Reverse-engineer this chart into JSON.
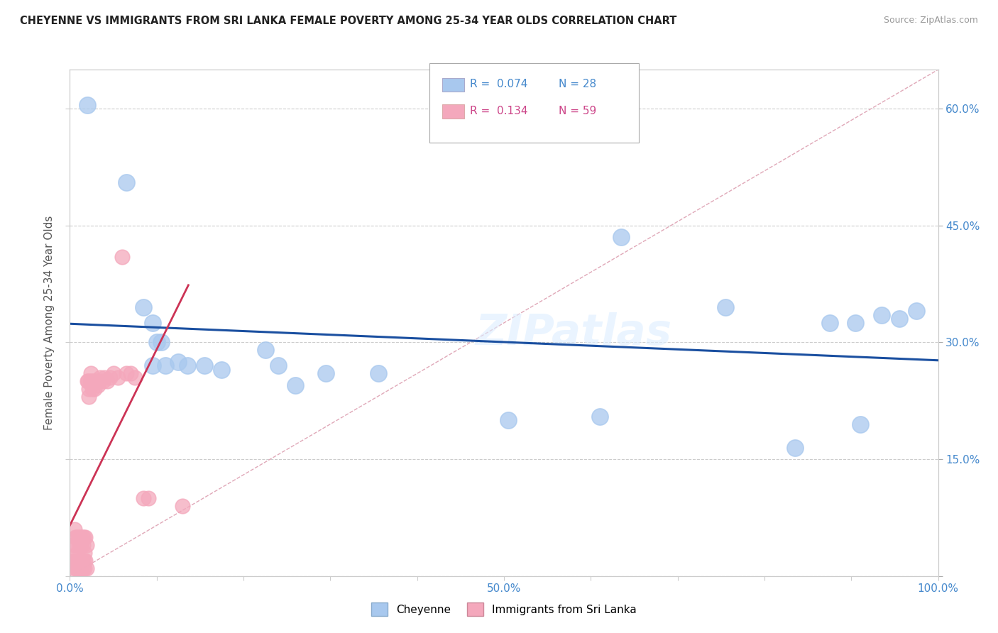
{
  "title": "CHEYENNE VS IMMIGRANTS FROM SRI LANKA FEMALE POVERTY AMONG 25-34 YEAR OLDS CORRELATION CHART",
  "source": "Source: ZipAtlas.com",
  "ylabel": "Female Poverty Among 25-34 Year Olds",
  "xlim": [
    0,
    1.0
  ],
  "ylim": [
    0,
    0.65
  ],
  "xticks": [
    0.0,
    0.1,
    0.2,
    0.3,
    0.4,
    0.5,
    0.6,
    0.7,
    0.8,
    0.9,
    1.0
  ],
  "xticklabels_show": {
    "0.0": "0.0%",
    "0.5": "50.0%",
    "1.0": "100.0%"
  },
  "yticks": [
    0.0,
    0.15,
    0.3,
    0.45,
    0.6
  ],
  "yticklabels_right": [
    "",
    "15.0%",
    "30.0%",
    "45.0%",
    "60.0%"
  ],
  "legend_r1": "0.074",
  "legend_n1": "28",
  "legend_r2": "0.134",
  "legend_n2": "59",
  "cheyenne_color": "#a8c8ee",
  "srilanka_color": "#f4a8bc",
  "trend_blue": "#1a4fa0",
  "trend_pink": "#cc3355",
  "diag_color": "#e0a8b8",
  "watermark": "ZIPatlas",
  "tick_color": "#4488cc",
  "grid_color": "#cccccc",
  "cheyenne_x": [
    0.02,
    0.065,
    0.085,
    0.095,
    0.1,
    0.11,
    0.125,
    0.135,
    0.155,
    0.175,
    0.225,
    0.24,
    0.26,
    0.295,
    0.355,
    0.505,
    0.61,
    0.635,
    0.755,
    0.835,
    0.875,
    0.905,
    0.91,
    0.935,
    0.955,
    0.975,
    0.095,
    0.105
  ],
  "cheyenne_y": [
    0.605,
    0.505,
    0.345,
    0.325,
    0.3,
    0.27,
    0.275,
    0.27,
    0.27,
    0.265,
    0.29,
    0.27,
    0.245,
    0.26,
    0.26,
    0.2,
    0.205,
    0.435,
    0.345,
    0.165,
    0.325,
    0.325,
    0.195,
    0.335,
    0.33,
    0.34,
    0.27,
    0.3
  ],
  "srilanka_x": [
    0.003,
    0.004,
    0.005,
    0.005,
    0.006,
    0.006,
    0.007,
    0.007,
    0.008,
    0.008,
    0.009,
    0.009,
    0.01,
    0.01,
    0.011,
    0.011,
    0.012,
    0.012,
    0.013,
    0.013,
    0.014,
    0.014,
    0.015,
    0.015,
    0.016,
    0.016,
    0.017,
    0.017,
    0.018,
    0.018,
    0.019,
    0.019,
    0.02,
    0.021,
    0.022,
    0.022,
    0.023,
    0.024,
    0.025,
    0.026,
    0.027,
    0.028,
    0.03,
    0.032,
    0.033,
    0.035,
    0.038,
    0.04,
    0.043,
    0.046,
    0.05,
    0.055,
    0.06,
    0.065,
    0.07,
    0.075,
    0.085,
    0.09,
    0.13
  ],
  "srilanka_y": [
    0.02,
    0.04,
    0.01,
    0.06,
    0.02,
    0.05,
    0.01,
    0.04,
    0.02,
    0.05,
    0.01,
    0.03,
    0.02,
    0.05,
    0.01,
    0.04,
    0.02,
    0.05,
    0.01,
    0.04,
    0.02,
    0.05,
    0.01,
    0.04,
    0.02,
    0.05,
    0.01,
    0.03,
    0.02,
    0.05,
    0.01,
    0.04,
    0.25,
    0.25,
    0.23,
    0.24,
    0.25,
    0.26,
    0.25,
    0.24,
    0.25,
    0.24,
    0.25,
    0.245,
    0.25,
    0.255,
    0.25,
    0.255,
    0.25,
    0.255,
    0.26,
    0.255,
    0.41,
    0.26,
    0.26,
    0.255,
    0.1,
    0.1,
    0.09
  ]
}
